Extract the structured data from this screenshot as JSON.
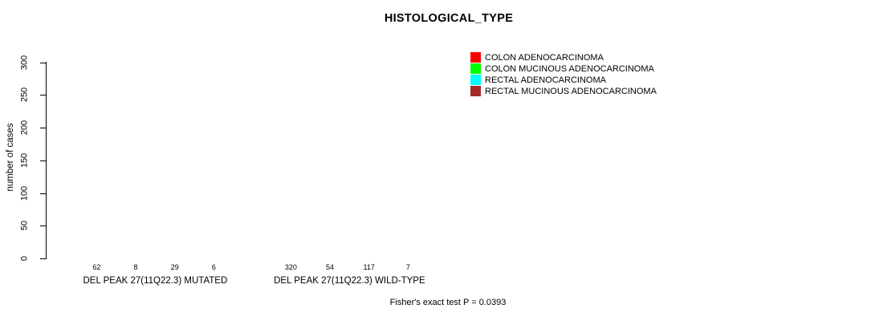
{
  "title": "HISTOLOGICAL_TYPE",
  "y_axis": {
    "label": "number of cases",
    "ticks": [
      0,
      50,
      100,
      150,
      200,
      250,
      300
    ]
  },
  "legend": {
    "items": [
      {
        "label": "COLON ADENOCARCINOMA",
        "color": "#ff0000"
      },
      {
        "label": "COLON MUCINOUS ADENOCARCINOMA",
        "color": "#00ff00"
      },
      {
        "label": "RECTAL ADENOCARCINOMA",
        "color": "#00ffff"
      },
      {
        "label": "RECTAL MUCINOUS ADENOCARCINOMA",
        "color": "#a52a2a"
      }
    ]
  },
  "footer": "Fisher's exact test P = 0.0393",
  "chart_data": {
    "type": "bar",
    "title": "HISTOLOGICAL_TYPE",
    "xlabel": "",
    "ylabel": "number of cases",
    "ylim": [
      0,
      300
    ],
    "yticks": [
      0,
      50,
      100,
      150,
      200,
      250,
      300
    ],
    "grid": false,
    "legend_position": "top-right",
    "annotation": "Fisher's exact test P = 0.0393",
    "series": [
      {
        "name": "COLON ADENOCARCINOMA",
        "color": "#ff0000",
        "values": [
          62,
          320
        ]
      },
      {
        "name": "COLON MUCINOUS ADENOCARCINOMA",
        "color": "#00ff00",
        "values": [
          8,
          54
        ]
      },
      {
        "name": "RECTAL ADENOCARCINOMA",
        "color": "#00ffff",
        "values": [
          29,
          117
        ]
      },
      {
        "name": "RECTAL MUCINOUS ADENOCARCINOMA",
        "color": "#a52a2a",
        "values": [
          6,
          7
        ]
      }
    ],
    "groups": [
      {
        "label": "DEL PEAK 27(11Q22.3) MUTATED",
        "values": [
          62,
          8,
          29,
          6
        ]
      },
      {
        "label": "DEL PEAK 27(11Q22.3) WILD-TYPE",
        "values": [
          320,
          54,
          117,
          7
        ]
      }
    ]
  }
}
